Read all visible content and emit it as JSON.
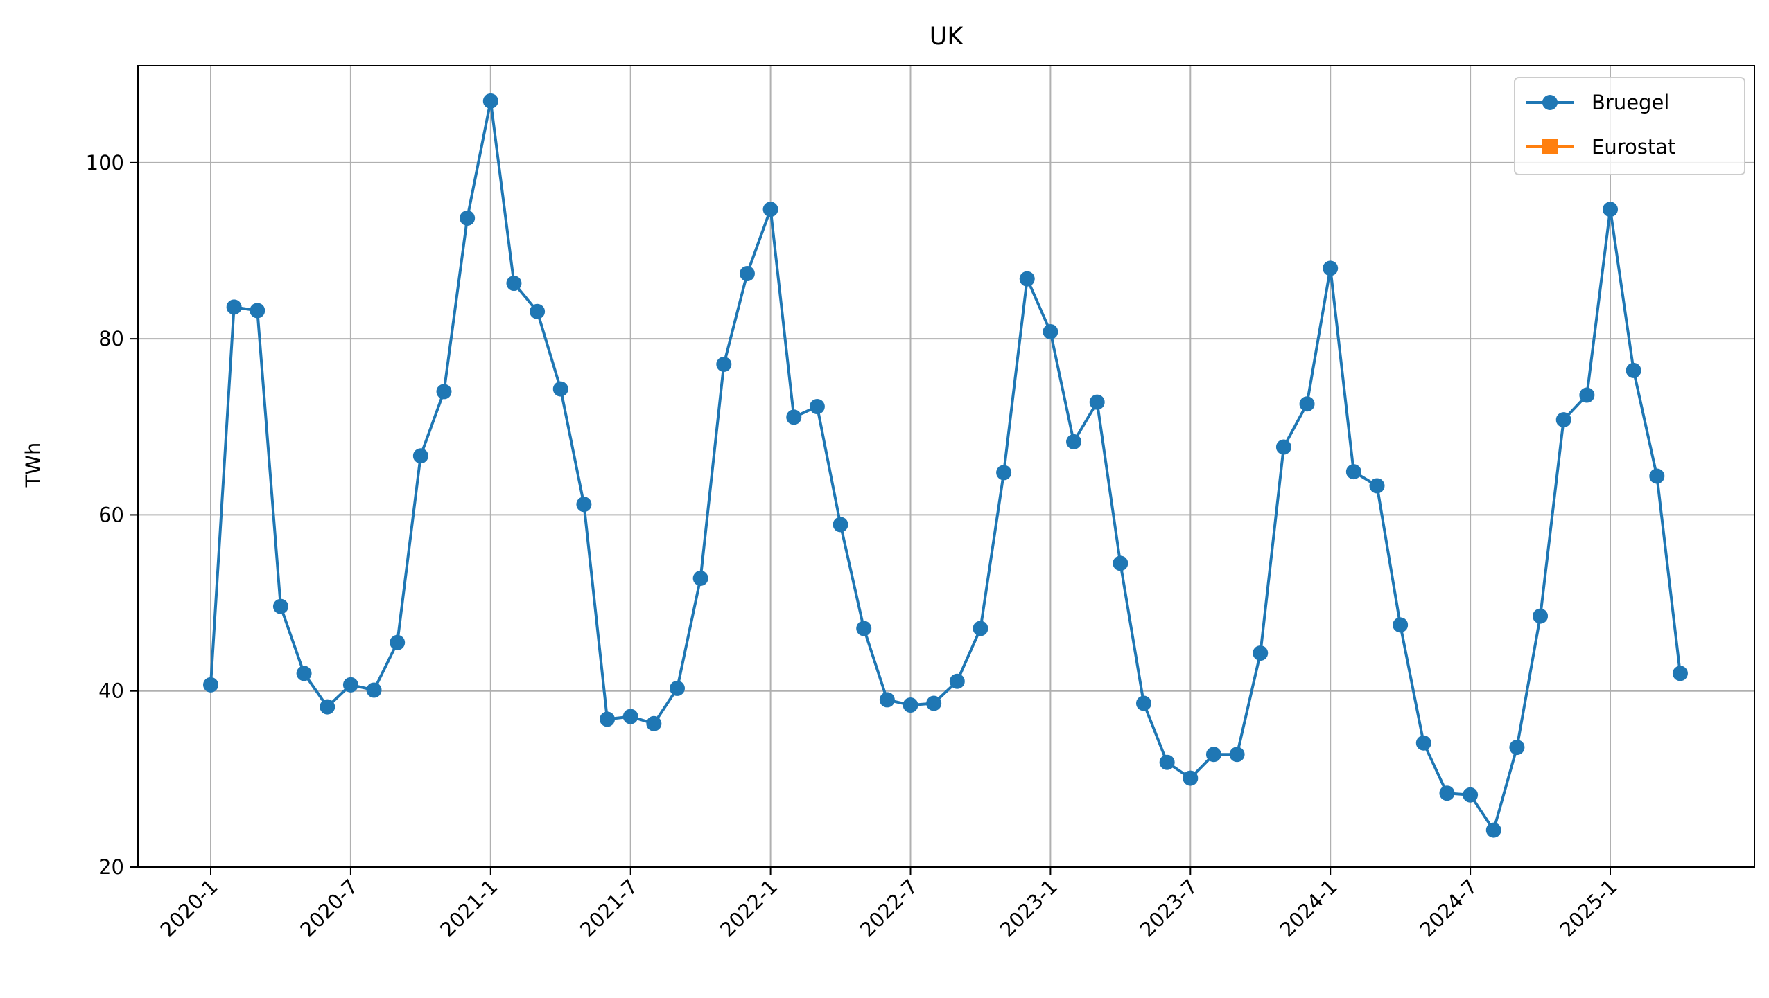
{
  "chart_data": {
    "type": "line",
    "title": "UK",
    "xlabel": "",
    "ylabel": "TWh",
    "ylim": [
      20,
      111
    ],
    "yticks": [
      20,
      40,
      60,
      80,
      100
    ],
    "xticks": [
      "2020-1",
      "2020-7",
      "2021-1",
      "2021-7",
      "2022-1",
      "2022-7",
      "2023-1",
      "2023-7",
      "2024-1",
      "2024-7",
      "2025-1"
    ],
    "grid": true,
    "legend_position": "top-right",
    "series": [
      {
        "name": "Bruegel",
        "color": "#1f77b4",
        "marker": "circle",
        "x": [
          "2020-01",
          "2020-02",
          "2020-03",
          "2020-04",
          "2020-05",
          "2020-06",
          "2020-07",
          "2020-08",
          "2020-09",
          "2020-10",
          "2020-11",
          "2020-12",
          "2021-01",
          "2021-02",
          "2021-03",
          "2021-04",
          "2021-05",
          "2021-06",
          "2021-07",
          "2021-08",
          "2021-09",
          "2021-10",
          "2021-11",
          "2021-12",
          "2022-01",
          "2022-02",
          "2022-03",
          "2022-04",
          "2022-05",
          "2022-06",
          "2022-07",
          "2022-08",
          "2022-09",
          "2022-10",
          "2022-11",
          "2022-12",
          "2023-01",
          "2023-02",
          "2023-03",
          "2023-04",
          "2023-05",
          "2023-06",
          "2023-07",
          "2023-08",
          "2023-09",
          "2023-10",
          "2023-11",
          "2023-12",
          "2024-01",
          "2024-02",
          "2024-03",
          "2024-04",
          "2024-05",
          "2024-06",
          "2024-07",
          "2024-08",
          "2024-09",
          "2024-10",
          "2024-11",
          "2024-12",
          "2025-01",
          "2025-02",
          "2025-03",
          "2025-04"
        ],
        "values": [
          40.7,
          83.6,
          83.2,
          49.6,
          42.0,
          38.2,
          40.7,
          40.1,
          45.5,
          66.7,
          74.0,
          93.7,
          107.0,
          86.3,
          83.1,
          74.3,
          61.2,
          36.8,
          37.1,
          36.3,
          40.3,
          52.8,
          77.1,
          87.4,
          94.7,
          71.1,
          72.3,
          58.9,
          47.1,
          39.0,
          38.4,
          38.6,
          41.1,
          47.1,
          64.8,
          86.8,
          80.8,
          68.3,
          72.8,
          54.5,
          38.6,
          31.9,
          30.1,
          32.8,
          32.8,
          44.3,
          67.7,
          72.6,
          88.0,
          64.9,
          63.3,
          47.5,
          34.1,
          28.4,
          28.2,
          24.2,
          33.6,
          48.5,
          70.8,
          73.6,
          94.7,
          76.4,
          64.4,
          42.0
        ]
      },
      {
        "name": "Eurostat",
        "color": "#ff7f0e",
        "marker": "square",
        "x": [],
        "values": []
      }
    ]
  }
}
